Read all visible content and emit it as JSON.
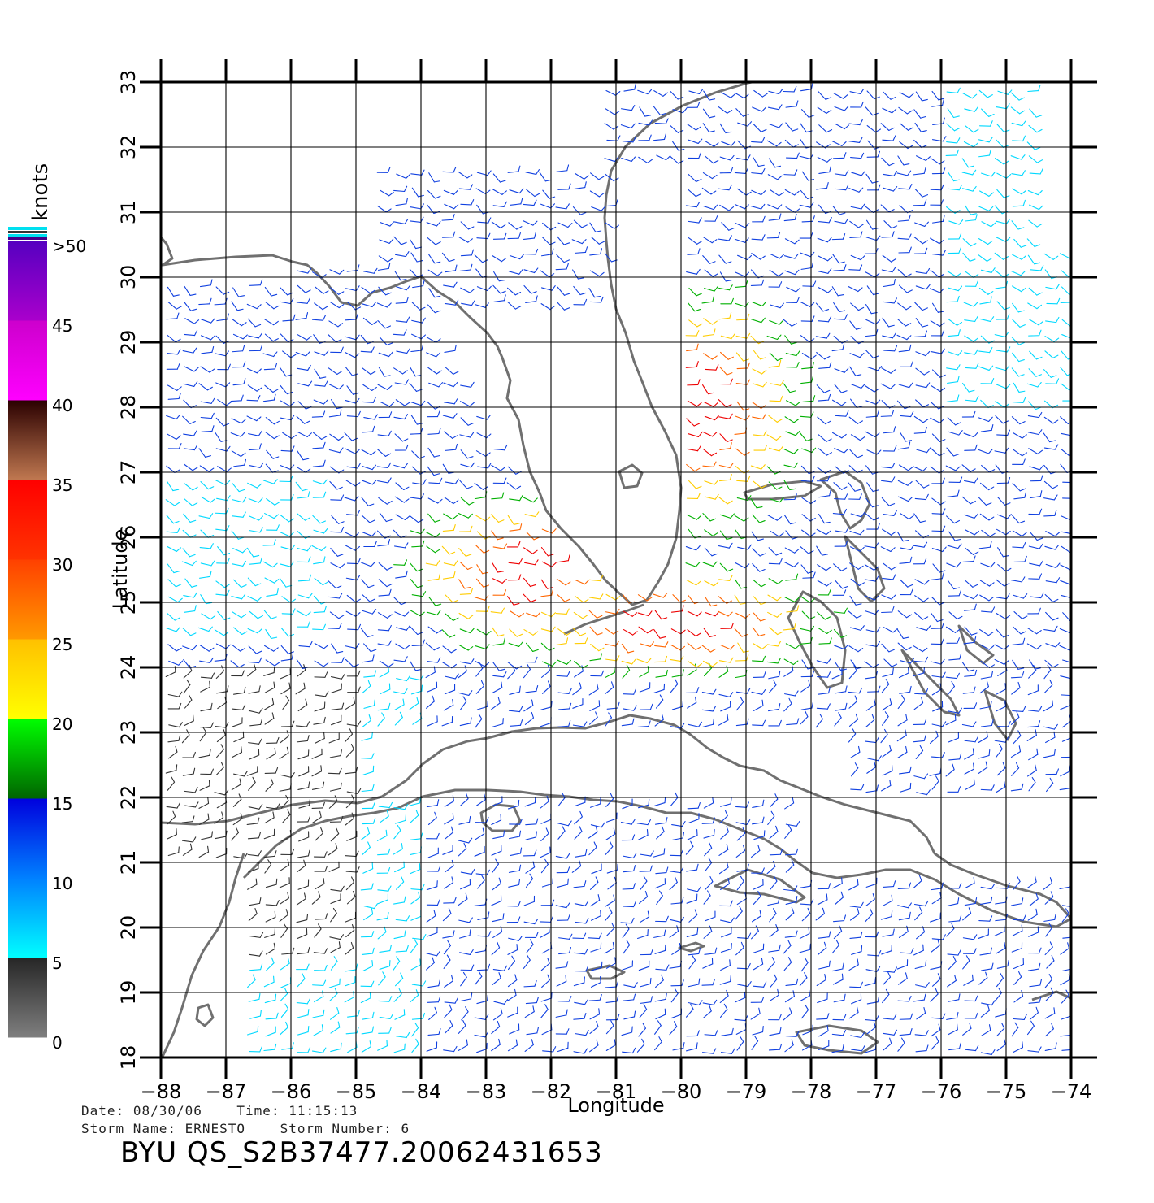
{
  "colorbar": {
    "unit_label": "knots",
    "tick_labels": [
      ">50",
      "45",
      "40",
      "35",
      "30",
      "25",
      "20",
      "15",
      "10",
      "5",
      "0"
    ],
    "bands": [
      {
        "range": [
          0,
          5
        ],
        "colors": [
          "#7f7f7f",
          "#262626"
        ]
      },
      {
        "range": [
          5,
          10
        ],
        "colors": [
          "#00ffff",
          "#0080ff"
        ]
      },
      {
        "range": [
          10,
          15
        ],
        "colors": [
          "#0080ff",
          "#0000dd"
        ]
      },
      {
        "range": [
          15,
          20
        ],
        "colors": [
          "#006400",
          "#00ff00"
        ]
      },
      {
        "range": [
          20,
          25
        ],
        "colors": [
          "#ffff00",
          "#ffc000"
        ]
      },
      {
        "range": [
          25,
          30
        ],
        "colors": [
          "#ff9900",
          "#ff4000"
        ]
      },
      {
        "range": [
          30,
          35
        ],
        "colors": [
          "#ff3300",
          "#ff0000"
        ]
      },
      {
        "range": [
          35,
          40
        ],
        "colors": [
          "#c07850",
          "#2a0000"
        ]
      },
      {
        "range": [
          40,
          45
        ],
        "colors": [
          "#ff00ff",
          "#cc00cc"
        ]
      },
      {
        "range": [
          45,
          50
        ],
        "colors": [
          "#aa00cc",
          "#5500c0"
        ]
      }
    ]
  },
  "map": {
    "xlabel": "Longitude",
    "ylabel": "Latitude",
    "lon_range": [
      -88,
      -74
    ],
    "lat_range": [
      18,
      33
    ],
    "lon_ticks": [
      -88,
      -87,
      -86,
      -85,
      -84,
      -83,
      -82,
      -81,
      -80,
      -79,
      -78,
      -77,
      -76,
      -75,
      -74
    ],
    "lat_ticks": [
      18,
      19,
      20,
      21,
      22,
      23,
      24,
      25,
      26,
      27,
      28,
      29,
      30,
      31,
      32,
      33
    ],
    "coast_color": "#707070",
    "grid_color": "#000000",
    "wind_field_note_colors": {
      "calm": "#333333",
      "light": "#00d8ff",
      "moderate": "#1040e0",
      "fresh": "#00b000",
      "strong": "#ffcc00",
      "gale": "#ff6600",
      "storm": "#ee0000"
    }
  },
  "meta": {
    "date_label": "Date:",
    "date_value": "08/30/06",
    "time_label": "Time:",
    "time_value": "11:15:13",
    "storm_name_label": "Storm Name:",
    "storm_name_value": "ERNESTO",
    "storm_number_label": "Storm Number:",
    "storm_number_value": "6",
    "product_id": "BYU QS_S2B37477.20062431653"
  }
}
